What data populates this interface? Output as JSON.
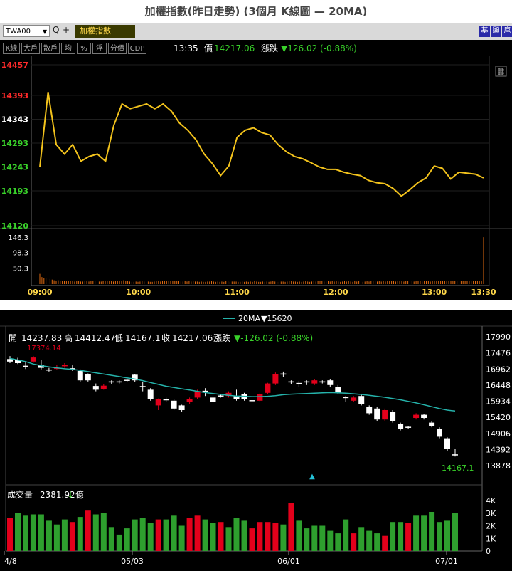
{
  "page_title": "加權指數(昨日走勢) (3個月 K線圖 — 20MA)",
  "intraday": {
    "toolbar": {
      "symbol": "TWA00",
      "dropdown_glyph": "▼",
      "search_glyph": "Q",
      "add_glyph": "+",
      "name": "加權指數",
      "right_buttons": [
        "基",
        "顯",
        "扈"
      ]
    },
    "tools": [
      "K線",
      "大戶",
      "散戶",
      "均",
      "%",
      "浮",
      "分價",
      "CDP"
    ],
    "time": "13:35",
    "price_label": "價",
    "price": "14217.06",
    "change_label": "漲跌",
    "change": "▼126.02 (-0.88%)",
    "link_glyph": "⛓",
    "colors": {
      "up": "#ff2a2a",
      "down": "#39d12a",
      "line": "#f3c31c",
      "volume": "#e06a10"
    }
  },
  "kline": {
    "ma_legend": "20MA",
    "ma_value": "▼15620",
    "ohlc": {
      "open_label": "開",
      "open": "14237.83",
      "high_label": "高",
      "high": "14412.47",
      "low_label": "低",
      "low": "14167.1",
      "close_label": "收",
      "close": "14217.06",
      "change_label": "漲跌",
      "change": "▼-126.02 (-0.88%)"
    },
    "max_label": "17374.14",
    "last_label": "14167.1",
    "volume_label": "成交量",
    "volume_value": "2381.92",
    "volume_unit": "億",
    "colors": {
      "up": "#e3001b",
      "down_body": "#ffffff",
      "ma": "#25b3ab",
      "vol_up": "#e3001b",
      "vol_down": "#2e9f2e"
    }
  },
  "chart_data": [
    {
      "type": "line",
      "subtype": "intraday-price",
      "x": [
        "09:00",
        "09:05",
        "09:10",
        "09:15",
        "09:20",
        "09:25",
        "09:30",
        "09:35",
        "09:40",
        "09:45",
        "09:50",
        "09:55",
        "10:00",
        "10:05",
        "10:10",
        "10:15",
        "10:20",
        "10:25",
        "10:30",
        "10:35",
        "10:40",
        "10:45",
        "10:50",
        "10:55",
        "11:00",
        "11:05",
        "11:10",
        "11:15",
        "11:20",
        "11:25",
        "11:30",
        "11:35",
        "11:40",
        "11:45",
        "11:50",
        "11:55",
        "12:00",
        "12:05",
        "12:10",
        "12:15",
        "12:20",
        "12:25",
        "12:30",
        "12:35",
        "12:40",
        "12:45",
        "12:50",
        "12:55",
        "13:00",
        "13:05",
        "13:10",
        "13:15",
        "13:20",
        "13:25",
        "13:30"
      ],
      "values": [
        14243,
        14400,
        14290,
        14270,
        14290,
        14255,
        14265,
        14270,
        14255,
        14330,
        14375,
        14365,
        14370,
        14375,
        14365,
        14375,
        14360,
        14335,
        14320,
        14300,
        14270,
        14250,
        14225,
        14245,
        14305,
        14320,
        14325,
        14315,
        14310,
        14290,
        14275,
        14265,
        14260,
        14252,
        14243,
        14238,
        14238,
        14232,
        14228,
        14225,
        14215,
        14210,
        14208,
        14198,
        14182,
        14195,
        14210,
        14220,
        14245,
        14240,
        14218,
        14232,
        14230,
        14228,
        14220
      ],
      "y_ticks": [
        14457,
        14393,
        14343,
        14293,
        14243,
        14193,
        14120
      ],
      "ylim": [
        14120,
        14457
      ],
      "reference": 14343,
      "x_ticks": [
        "09:00",
        "10:00",
        "11:00",
        "12:00",
        "13:00",
        "13:30"
      ]
    },
    {
      "type": "bar",
      "subtype": "intraday-volume",
      "y_ticks": [
        146.3,
        98.3,
        50.3
      ],
      "ylim": [
        0,
        146.3
      ],
      "values": [
        32,
        22,
        20,
        18,
        15,
        16,
        14,
        12,
        11,
        12,
        10,
        11,
        9,
        10,
        10,
        9,
        10,
        8,
        9,
        9,
        8,
        8,
        9,
        10,
        8,
        9,
        10,
        9,
        10,
        8,
        8,
        9,
        10,
        9,
        10,
        9,
        8,
        10,
        9,
        10,
        11,
        12,
        10,
        9,
        8,
        7,
        7,
        8,
        7,
        8,
        9,
        8,
        8,
        8,
        7,
        7,
        8,
        9,
        9,
        8,
        9,
        10,
        10,
        9,
        9,
        10,
        9,
        10,
        9,
        8,
        8,
        9,
        8,
        9,
        8,
        9,
        8,
        8,
        7,
        8,
        7,
        7,
        8,
        8,
        9,
        8,
        7,
        8,
        7,
        8,
        7,
        9,
        9,
        7,
        8,
        8,
        8,
        7,
        7,
        8,
        7,
        8,
        7,
        8,
        7,
        9,
        8,
        7,
        7,
        8,
        7,
        8,
        7,
        8,
        9,
        8,
        7,
        7,
        8,
        8,
        7,
        8,
        9,
        9,
        8,
        8,
        7,
        8,
        7,
        8,
        9,
        8,
        7,
        8,
        9,
        8,
        9,
        10,
        9,
        8,
        8,
        9,
        8,
        9,
        8,
        9,
        8,
        7,
        8,
        9,
        8,
        9,
        8,
        7,
        9,
        8,
        9,
        8,
        7,
        8,
        9,
        8,
        9,
        10,
        9,
        8,
        9,
        8,
        9,
        8,
        9,
        9,
        9,
        9,
        8,
        9,
        9,
        9,
        8,
        9,
        9,
        10,
        9,
        8,
        9,
        9,
        9,
        8,
        9,
        9,
        9,
        8,
        9,
        9,
        9,
        9,
        9,
        9,
        9,
        9,
        9,
        9,
        9,
        9,
        9,
        9,
        9,
        9,
        9,
        9,
        9,
        9,
        9,
        9,
        9,
        9,
        9,
        146
      ]
    },
    {
      "type": "candlestick",
      "subtype": "daily-kline",
      "x_ticks": [
        "4/8",
        "05/03",
        "06/01",
        "07/01"
      ],
      "y_ticks": [
        17990,
        17476,
        16962,
        16448,
        15934,
        15420,
        14906,
        14392,
        13878
      ],
      "ylim": [
        13878,
        17990
      ],
      "candles": [
        {
          "o": 17280,
          "c": 17200,
          "h": 17374,
          "l": 17150
        },
        {
          "o": 17250,
          "c": 17150,
          "h": 17320,
          "l": 17120
        },
        {
          "o": 17050,
          "c": 17050,
          "h": 17200,
          "l": 16960
        },
        {
          "o": 17200,
          "c": 17330,
          "h": 17380,
          "l": 17160
        },
        {
          "o": 17100,
          "c": 17000,
          "h": 17250,
          "l": 16950
        },
        {
          "o": 16930,
          "c": 16930,
          "h": 17000,
          "l": 16880
        },
        {
          "o": 16990,
          "c": 17000,
          "h": 17100,
          "l": 16950
        },
        {
          "o": 17050,
          "c": 17100,
          "h": 17150,
          "l": 17000
        },
        {
          "o": 16970,
          "c": 16970,
          "h": 17080,
          "l": 16900
        },
        {
          "o": 16900,
          "c": 16600,
          "h": 16950,
          "l": 16550
        },
        {
          "o": 16800,
          "c": 16600,
          "h": 16820,
          "l": 16560
        },
        {
          "o": 16420,
          "c": 16300,
          "h": 16500,
          "l": 16250
        },
        {
          "o": 16330,
          "c": 16430,
          "h": 16480,
          "l": 16300
        },
        {
          "o": 16550,
          "c": 16550,
          "h": 16600,
          "l": 16480
        },
        {
          "o": 16550,
          "c": 16550,
          "h": 16600,
          "l": 16500
        },
        {
          "o": 16600,
          "c": 16600,
          "h": 16650,
          "l": 16550
        },
        {
          "o": 16780,
          "c": 16600,
          "h": 16800,
          "l": 16550
        },
        {
          "o": 16400,
          "c": 16400,
          "h": 16550,
          "l": 16250
        },
        {
          "o": 16300,
          "c": 16000,
          "h": 16350,
          "l": 15950
        },
        {
          "o": 15800,
          "c": 16000,
          "h": 16020,
          "l": 15650
        },
        {
          "o": 15980,
          "c": 15980,
          "h": 16050,
          "l": 15900
        },
        {
          "o": 15950,
          "c": 15700,
          "h": 16000,
          "l": 15650
        },
        {
          "o": 15800,
          "c": 15650,
          "h": 15820,
          "l": 15600
        },
        {
          "o": 15900,
          "c": 16000,
          "h": 16050,
          "l": 15850
        },
        {
          "o": 16050,
          "c": 16250,
          "h": 16300,
          "l": 16000
        },
        {
          "o": 16250,
          "c": 16250,
          "h": 16350,
          "l": 16100
        },
        {
          "o": 16050,
          "c": 15900,
          "h": 16100,
          "l": 15850
        },
        {
          "o": 16100,
          "c": 16100,
          "h": 16150,
          "l": 16050
        },
        {
          "o": 16100,
          "c": 16200,
          "h": 16250,
          "l": 16050
        },
        {
          "o": 16100,
          "c": 16000,
          "h": 16300,
          "l": 15950
        },
        {
          "o": 16150,
          "c": 16000,
          "h": 16200,
          "l": 15950
        },
        {
          "o": 15950,
          "c": 15950,
          "h": 16000,
          "l": 15900
        },
        {
          "o": 15950,
          "c": 16150,
          "h": 16200,
          "l": 15900
        },
        {
          "o": 16200,
          "c": 16500,
          "h": 16520,
          "l": 16150
        },
        {
          "o": 16500,
          "c": 16800,
          "h": 16850,
          "l": 16450
        },
        {
          "o": 16800,
          "c": 16800,
          "h": 16880,
          "l": 16700
        },
        {
          "o": 16550,
          "c": 16550,
          "h": 16600,
          "l": 16480
        },
        {
          "o": 16500,
          "c": 16500,
          "h": 16580,
          "l": 16400
        },
        {
          "o": 16550,
          "c": 16550,
          "h": 16600,
          "l": 16450
        },
        {
          "o": 16500,
          "c": 16600,
          "h": 16650,
          "l": 16450
        },
        {
          "o": 16550,
          "c": 16550,
          "h": 16600,
          "l": 16500
        },
        {
          "o": 16600,
          "c": 16450,
          "h": 16650,
          "l": 16400
        },
        {
          "o": 16400,
          "c": 16200,
          "h": 16450,
          "l": 16150
        },
        {
          "o": 16050,
          "c": 16050,
          "h": 16100,
          "l": 15900
        },
        {
          "o": 15950,
          "c": 16050,
          "h": 16100,
          "l": 15900
        },
        {
          "o": 16100,
          "c": 15850,
          "h": 16150,
          "l": 15800
        },
        {
          "o": 15750,
          "c": 15550,
          "h": 15800,
          "l": 15500
        },
        {
          "o": 15700,
          "c": 15350,
          "h": 15750,
          "l": 15300
        },
        {
          "o": 15350,
          "c": 15650,
          "h": 15700,
          "l": 15300
        },
        {
          "o": 15600,
          "c": 15300,
          "h": 15650,
          "l": 15250
        },
        {
          "o": 15200,
          "c": 15050,
          "h": 15250,
          "l": 15000
        },
        {
          "o": 15100,
          "c": 15100,
          "h": 15150,
          "l": 15050
        },
        {
          "o": 15400,
          "c": 15500,
          "h": 15550,
          "l": 15350
        },
        {
          "o": 15500,
          "c": 15400,
          "h": 15520,
          "l": 15350
        },
        {
          "o": 15250,
          "c": 15150,
          "h": 15300,
          "l": 15100
        },
        {
          "o": 15050,
          "c": 14800,
          "h": 15100,
          "l": 14750
        },
        {
          "o": 14750,
          "c": 14400,
          "h": 14780,
          "l": 14350
        },
        {
          "o": 14237,
          "c": 14217,
          "h": 14412,
          "l": 14167
        }
      ],
      "ma20": [
        17300,
        17250,
        17200,
        17120,
        17070,
        17030,
        17000,
        16970,
        16950,
        16920,
        16880,
        16840,
        16800,
        16760,
        16720,
        16680,
        16640,
        16590,
        16530,
        16470,
        16410,
        16370,
        16330,
        16290,
        16250,
        16210,
        16180,
        16150,
        16120,
        16100,
        16090,
        16080,
        16080,
        16090,
        16110,
        16140,
        16160,
        16170,
        16180,
        16190,
        16200,
        16210,
        16200,
        16190,
        16170,
        16150,
        16120,
        16090,
        16060,
        16020,
        15980,
        15930,
        15880,
        15820,
        15760,
        15700,
        15650,
        15620
      ]
    },
    {
      "type": "bar",
      "subtype": "daily-volume",
      "y_ticks": [
        "4K",
        "3K",
        "2K",
        "1K",
        "0"
      ],
      "ylim": [
        0,
        4
      ],
      "values": [
        2.6,
        3.0,
        2.8,
        2.9,
        2.9,
        2.4,
        2.1,
        2.5,
        2.3,
        2.7,
        3.2,
        2.9,
        3.0,
        1.9,
        1.3,
        1.8,
        2.5,
        2.6,
        2.2,
        2.5,
        2.5,
        2.8,
        2.0,
        2.6,
        2.8,
        2.5,
        2.2,
        2.3,
        1.9,
        2.6,
        2.4,
        1.8,
        2.3,
        2.3,
        2.2,
        2.1,
        3.8,
        2.4,
        1.8,
        2.0,
        2.0,
        1.6,
        1.4,
        2.5,
        1.4,
        1.9,
        1.6,
        1.4,
        1.2,
        2.3,
        2.3,
        2.2,
        2.8,
        2.8,
        3.1,
        2.3,
        2.4,
        3.0
      ],
      "up": [
        1,
        0,
        0,
        0,
        0,
        0,
        0,
        0,
        1,
        0,
        1,
        0,
        0,
        0,
        0,
        0,
        0,
        0,
        0,
        1,
        0,
        0,
        0,
        1,
        1,
        0,
        0,
        1,
        0,
        0,
        0,
        1,
        1,
        1,
        1,
        0,
        1,
        0,
        0,
        0,
        0,
        0,
        0,
        0,
        1,
        0,
        0,
        0,
        1,
        0,
        0,
        1,
        0,
        0,
        0,
        0,
        0,
        0
      ]
    }
  ]
}
